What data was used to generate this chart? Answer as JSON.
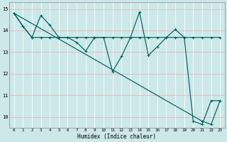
{
  "xlabel": "Humidex (Indice chaleur)",
  "xlim": [
    -0.5,
    23.5
  ],
  "ylim": [
    9.5,
    15.3
  ],
  "yticks": [
    10,
    11,
    12,
    13,
    14,
    15
  ],
  "xticks": [
    0,
    1,
    2,
    3,
    4,
    5,
    6,
    7,
    8,
    9,
    10,
    11,
    12,
    13,
    14,
    15,
    16,
    17,
    18,
    19,
    20,
    21,
    22,
    23
  ],
  "bg_color": "#cce8e8",
  "line_color": "#006060",
  "grid_color_h": "#e8b8b8",
  "grid_color_v": "#ffffff",
  "series1_x": [
    0,
    1,
    2,
    3,
    4,
    5,
    6,
    7,
    8,
    9,
    10,
    11,
    12,
    13,
    14,
    15,
    16,
    17,
    18,
    19,
    20,
    21,
    22,
    23
  ],
  "series1_y": [
    14.8,
    14.2,
    13.68,
    13.68,
    13.68,
    13.68,
    13.68,
    13.68,
    13.68,
    13.68,
    13.68,
    13.68,
    13.68,
    13.68,
    13.68,
    13.68,
    13.68,
    13.68,
    13.68,
    13.68,
    13.68,
    13.68,
    13.68,
    13.68
  ],
  "series2_x": [
    0,
    1,
    2,
    3,
    4,
    5,
    6,
    7,
    8,
    9,
    10,
    11,
    12,
    13,
    14,
    15,
    16,
    17,
    18,
    19,
    20,
    21,
    22,
    23
  ],
  "series2_y": [
    14.8,
    14.2,
    13.68,
    14.7,
    14.25,
    13.68,
    13.68,
    13.45,
    13.05,
    13.68,
    13.68,
    12.1,
    12.8,
    13.68,
    14.85,
    12.85,
    13.25,
    13.68,
    14.05,
    13.68,
    9.8,
    9.65,
    10.75,
    10.75
  ],
  "series3_x": [
    0,
    21,
    22,
    23
  ],
  "series3_y": [
    14.8,
    9.8,
    9.65,
    10.75
  ]
}
